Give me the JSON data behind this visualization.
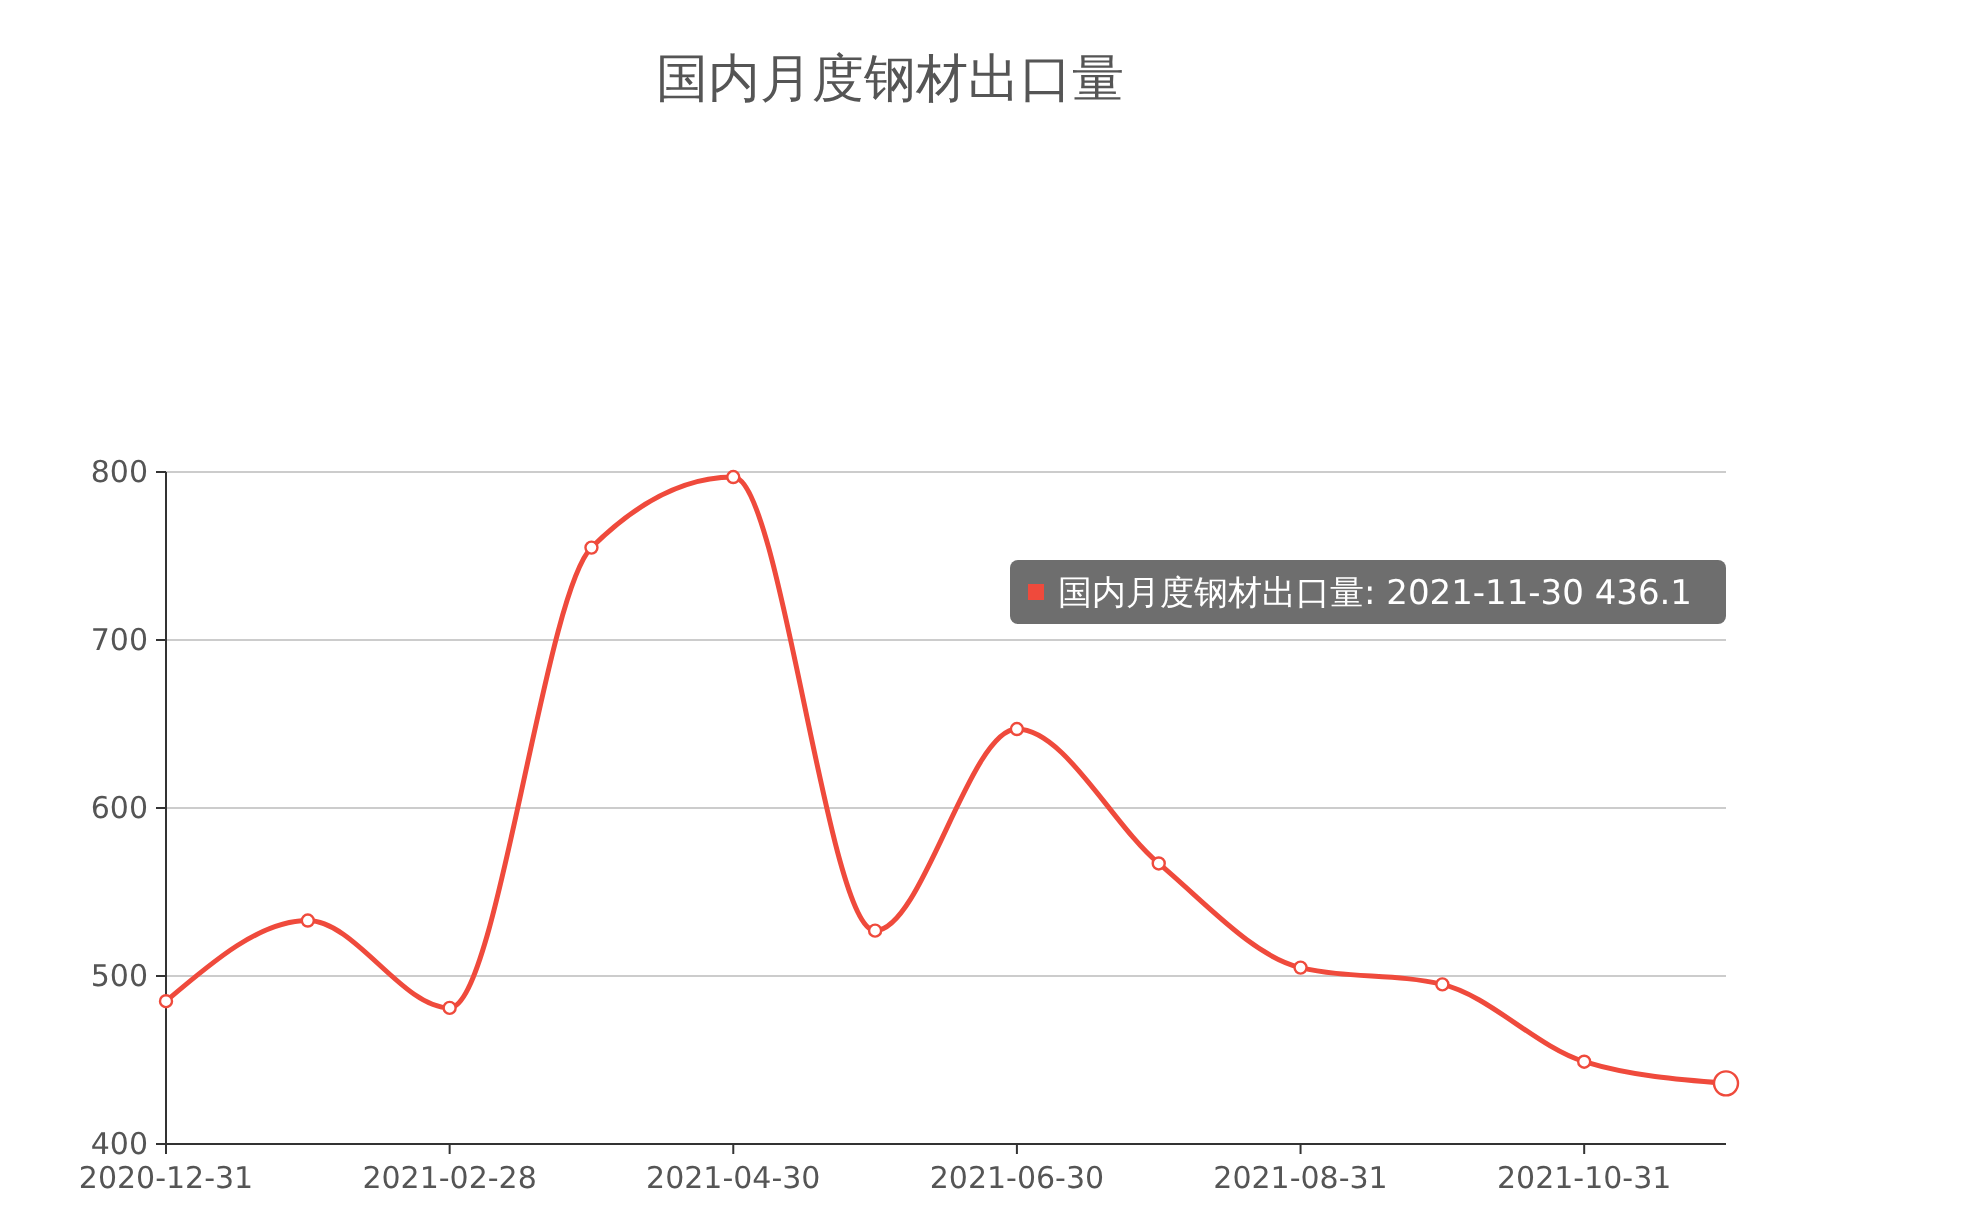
{
  "chart_data": {
    "type": "line",
    "title": "国内月度钢材出口量",
    "categories": [
      "2020-12-31",
      null,
      "2021-02-28",
      null,
      "2021-04-30",
      null,
      "2021-06-30",
      null,
      "2021-08-31",
      null,
      "2021-10-31",
      null
    ],
    "series": [
      {
        "color": "#ef4a3c",
        "values": [
          485,
          533,
          481,
          755,
          797,
          527,
          647,
          567,
          505,
          495,
          449,
          436.1
        ]
      }
    ],
    "ylim": [
      400,
      800
    ],
    "yticks": [
      400,
      500,
      600,
      700,
      800
    ],
    "grid": "y",
    "marker": "circle",
    "line_style": "solid",
    "annotations": [
      "国内月度钢材出口量: 2021-11-30 436.1"
    ]
  }
}
